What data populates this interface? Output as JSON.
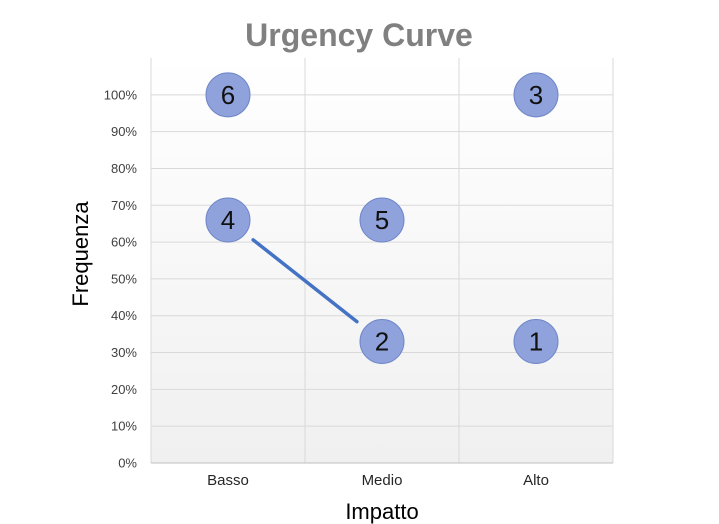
{
  "chart_data": {
    "type": "scatter",
    "title": "Urgency Curve",
    "xlabel": "Impatto",
    "ylabel": "Frequenza",
    "categories": [
      "Basso",
      "Medio",
      "Alto"
    ],
    "ylim": [
      0,
      110
    ],
    "yticks": [
      "0%",
      "10%",
      "20%",
      "30%",
      "40%",
      "50%",
      "60%",
      "70%",
      "80%",
      "90%",
      "100%"
    ],
    "grid": true,
    "points": [
      {
        "label": "1",
        "x": "Alto",
        "y": 33
      },
      {
        "label": "2",
        "x": "Medio",
        "y": 33
      },
      {
        "label": "3",
        "x": "Alto",
        "y": 100
      },
      {
        "label": "4",
        "x": "Basso",
        "y": 66
      },
      {
        "label": "5",
        "x": "Medio",
        "y": 66
      },
      {
        "label": "6",
        "x": "Basso",
        "y": 100
      }
    ],
    "connector": {
      "from_point": "4",
      "to_point": "2"
    },
    "colors": {
      "bubble_fill": "#8FA2DB",
      "bubble_stroke": "#6F86C9",
      "connector": "#4472C4",
      "grid": "#D9D9D9",
      "plot_bg_top": "#FFFFFF",
      "plot_bg_bottom": "#F0F0F0"
    }
  }
}
